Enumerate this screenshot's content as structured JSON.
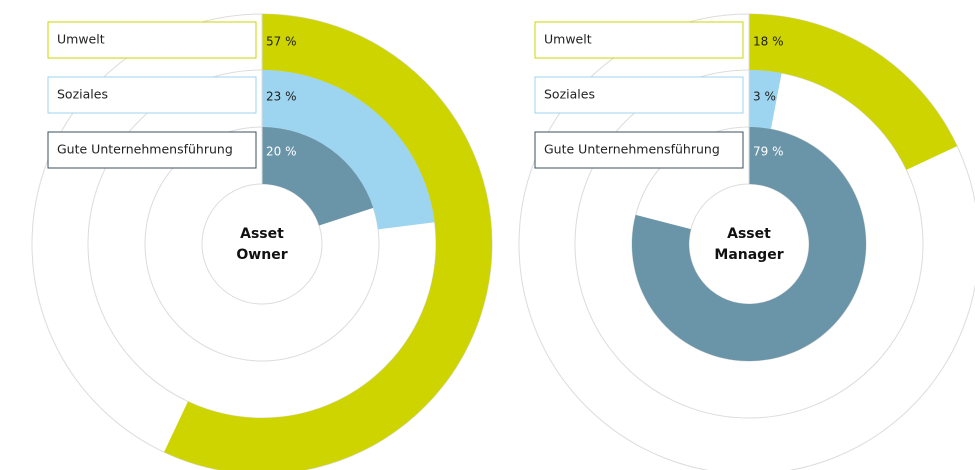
{
  "chart_data": [
    {
      "type": "radial_bar",
      "title": [
        "Asset",
        "Owner"
      ],
      "categories": [
        "Umwelt",
        "Soziales",
        "Gute Unternehmensführung"
      ],
      "values": [
        57,
        23,
        20
      ],
      "value_labels": [
        "57 %",
        "23 %",
        "20 %"
      ],
      "colors": [
        "#cdd400",
        "#9dd4ef",
        "#6a94a8"
      ]
    },
    {
      "type": "radial_bar",
      "title": [
        "Asset",
        "Manager"
      ],
      "categories": [
        "Umwelt",
        "Soziales",
        "Gute Unternehmensführung"
      ],
      "values": [
        18,
        3,
        79
      ],
      "value_labels": [
        "18 %",
        "3 %",
        "79 %"
      ],
      "colors": [
        "#cdd400",
        "#9dd4ef",
        "#6a94a8"
      ]
    }
  ]
}
